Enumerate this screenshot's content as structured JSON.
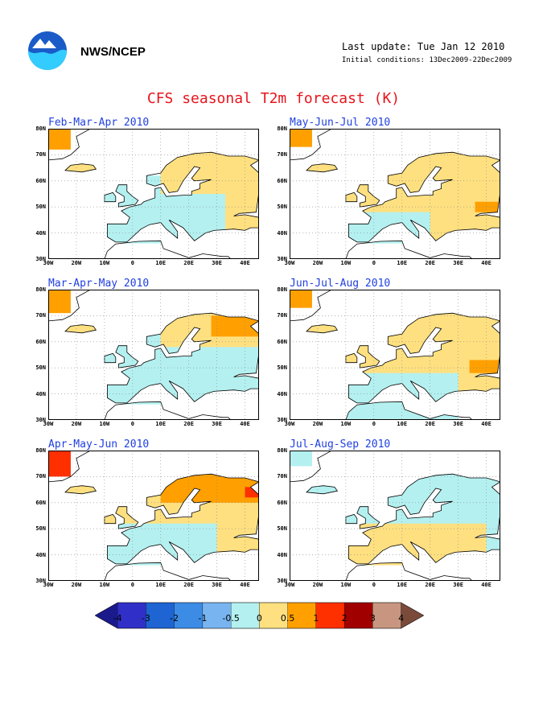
{
  "header": {
    "org": "NWS/NCEP",
    "last_update": "Last update: Tue Jan 12 2010",
    "initial_conditions": "Initial conditions: 13Dec2009-22Dec2009"
  },
  "title": "CFS seasonal T2m forecast (K)",
  "panels": [
    {
      "title": "Feb-Mar-Apr 2010"
    },
    {
      "title": "May-Jun-Jul 2010"
    },
    {
      "title": "Mar-Apr-May 2010"
    },
    {
      "title": "Jun-Jul-Aug 2010"
    },
    {
      "title": "Apr-May-Jun 2010"
    },
    {
      "title": "Jul-Aug-Sep 2010"
    }
  ],
  "axes": {
    "lat_labels": [
      "80N",
      "70N",
      "60N",
      "50N",
      "40N",
      "30N"
    ],
    "lon_labels": [
      "30W",
      "20W",
      "10W",
      "0",
      "10E",
      "20E",
      "30E",
      "40E"
    ]
  },
  "colorbar": {
    "labels": [
      "-4",
      "-3",
      "-2",
      "-1",
      "-0.5",
      "0",
      "0.5",
      "1",
      "2",
      "3",
      "4"
    ],
    "colors": [
      "#1a1a8c",
      "#3030c8",
      "#1e64d2",
      "#3c8ce6",
      "#78b4f0",
      "#b4f0f0",
      "#ffe080",
      "#ffa000",
      "#ff3000",
      "#a00000",
      "#c89680",
      "#7a4a3a"
    ]
  },
  "colors": {
    "title": "#e8141c",
    "panel_title": "#1f3fe0",
    "ocean": "#ffffff"
  }
}
